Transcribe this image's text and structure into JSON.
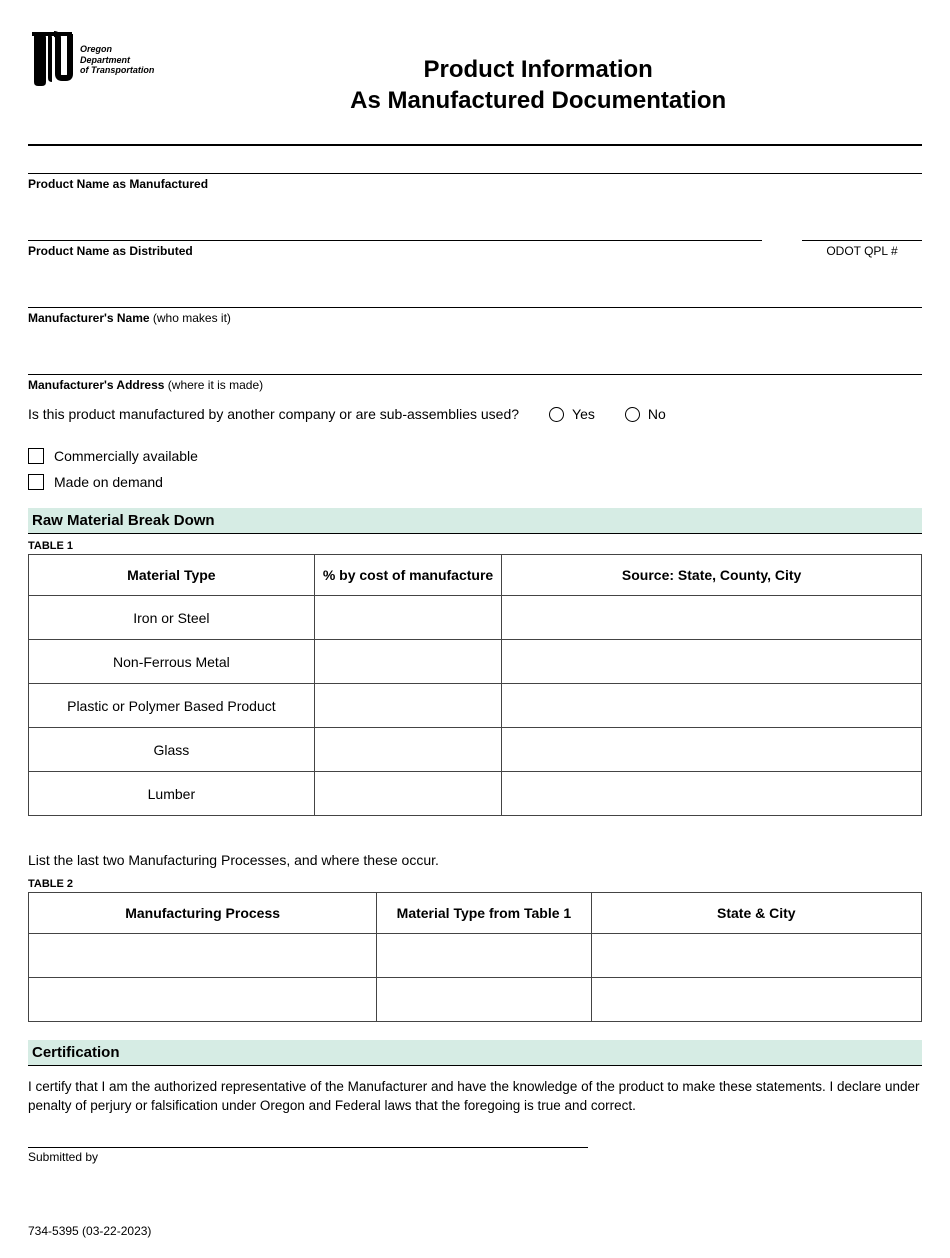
{
  "logo": {
    "line1": "Oregon",
    "line2": "Department",
    "line3": "of Transportation"
  },
  "title": {
    "line1": "Product Information",
    "line2": "As Manufactured Documentation"
  },
  "fields": {
    "product_manufactured": "Product Name as Manufactured",
    "product_distributed": "Product Name as Distributed",
    "odot_qpl": "ODOT QPL #",
    "manufacturer_name_bold": "Manufacturer's Name",
    "manufacturer_name_light": " (who makes it)",
    "manufacturer_address_bold": "Manufacturer's Address",
    "manufacturer_address_light": " (where it is made)"
  },
  "question": {
    "text": "Is this product manufactured by another company or are sub-assemblies used?",
    "yes": "Yes",
    "no": "No"
  },
  "checkboxes": {
    "commercial": "Commercially available",
    "demand": "Made on demand"
  },
  "section_raw": "Raw Material Break Down",
  "table1": {
    "caption": "TABLE 1",
    "columns": [
      "Material Type",
      "% by cost of manufacture",
      "Source: State, County, City"
    ],
    "rows": [
      [
        "Iron or Steel",
        "",
        ""
      ],
      [
        "Non-Ferrous Metal",
        "",
        ""
      ],
      [
        "Plastic or Polymer Based Product",
        "",
        ""
      ],
      [
        "Glass",
        "",
        ""
      ],
      [
        "Lumber",
        "",
        ""
      ]
    ]
  },
  "list_instruction": "List the last two Manufacturing Processes, and where these occur.",
  "table2": {
    "caption": "TABLE 2",
    "columns": [
      "Manufacturing Process",
      "Material Type from Table 1",
      "State & City"
    ],
    "rows": [
      [
        "",
        "",
        ""
      ],
      [
        "",
        "",
        ""
      ]
    ]
  },
  "section_cert": "Certification",
  "cert_text": "I certify that I am the authorized representative of the Manufacturer and have the knowledge of the product to make these statements. I declare under penalty of perjury or falsification under Oregon and Federal laws that the foregoing is true and correct.",
  "submitted_by": "Submitted by",
  "footer": "734-5395 (03-22-2023)",
  "colors": {
    "section_bg": "#d6ece4",
    "border": "#000000"
  }
}
